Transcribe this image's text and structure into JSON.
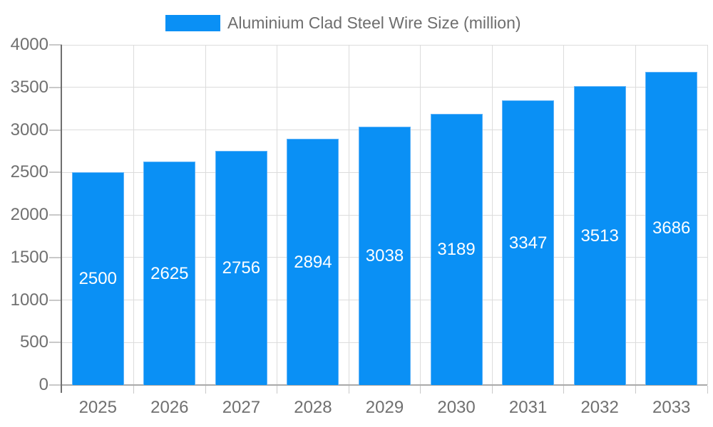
{
  "chart_data": {
    "type": "bar",
    "title": "Aluminium Clad Steel Wire Size (million)",
    "categories": [
      "2025",
      "2026",
      "2027",
      "2028",
      "2029",
      "2030",
      "2031",
      "2032",
      "2033"
    ],
    "values": [
      2500,
      2625,
      2756,
      2894,
      3038,
      3189,
      3347,
      3513,
      3686
    ],
    "value_labels": [
      "2500",
      "2625",
      "2756",
      "2894",
      "3038",
      "3189",
      "3347",
      "3513",
      "3686"
    ],
    "yticks": [
      "0",
      "500",
      "1000",
      "1500",
      "2000",
      "2500",
      "3000",
      "3500",
      "4000"
    ],
    "ytick_values": [
      0,
      500,
      1000,
      1500,
      2000,
      2500,
      3000,
      3500,
      4000
    ],
    "ylim": [
      0,
      4000
    ],
    "xlabel": "",
    "ylabel": "",
    "grid": "on",
    "legend_position": "top",
    "colors": {
      "bar_fill": "#0a90f5",
      "bar_border": "#5eb2f8",
      "value_label": "#ffffff",
      "axis_text": "#707070",
      "legend_text": "#6e6e6e",
      "gridline": "#dcdcdc",
      "tick": "#c9c9c9",
      "baseline": "#a9a9a9",
      "yaxis_line": "#6f6f6f",
      "background": "#ffffff"
    }
  }
}
